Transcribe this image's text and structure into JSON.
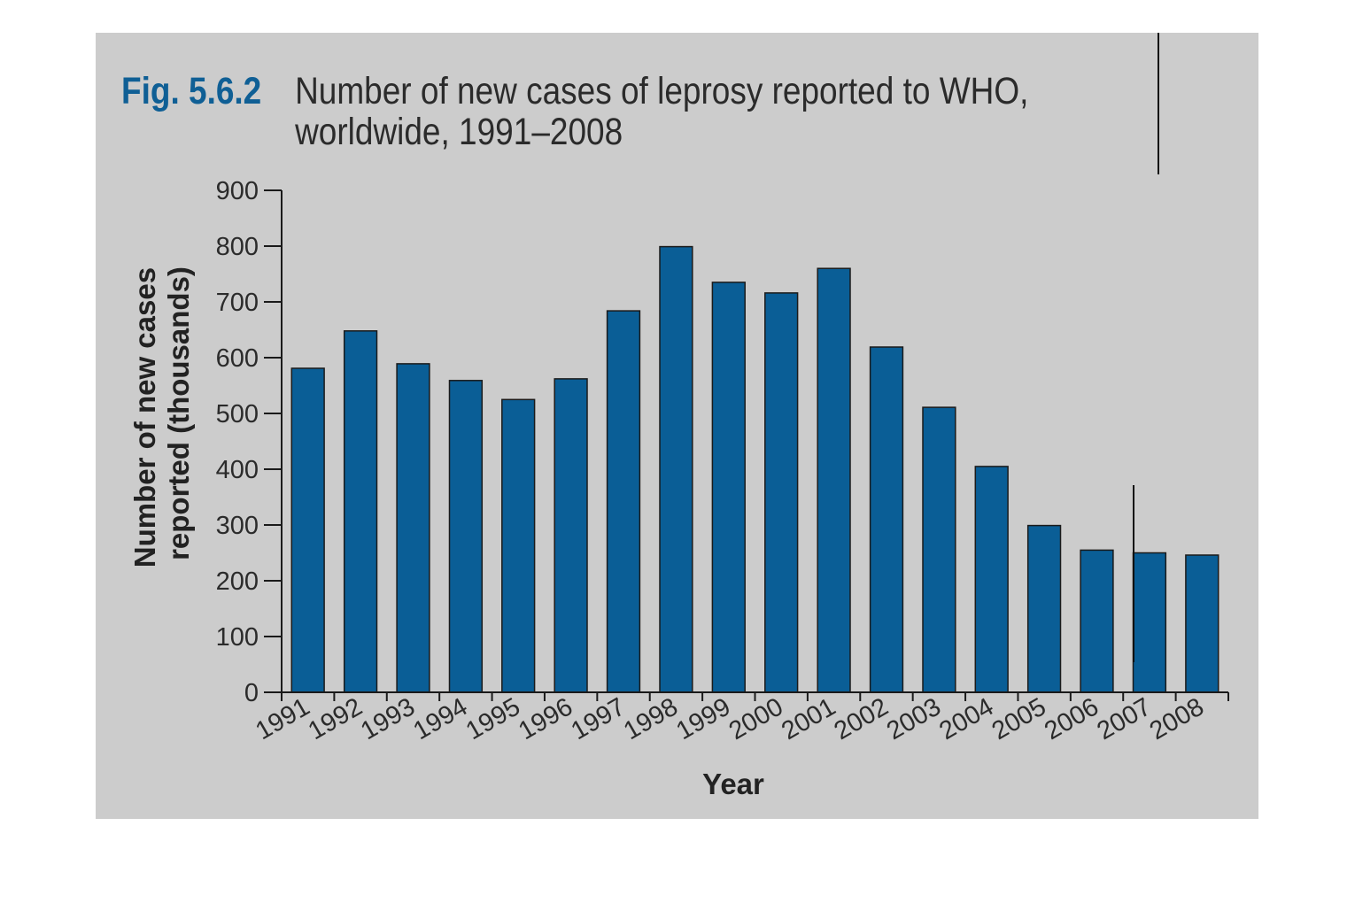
{
  "figure": {
    "label": "Fig. 5.6.2",
    "caption": "Number of new cases of leprosy reported to WHO, worldwide, 1991–2008"
  },
  "colors": {
    "panel_background": "#cccccc",
    "bar_fill": "#0a5e96",
    "bar_stroke": "#1a1a1a",
    "figure_label": "#0f5f95"
  },
  "chart_data": {
    "type": "bar",
    "title": "Number of new cases of leprosy reported to WHO, worldwide, 1991–2008",
    "xlabel": "Year",
    "ylabel": "Number of new cases reported (thousands)",
    "ylabel_lines": [
      "Number of new cases",
      "reported (thousands)"
    ],
    "categories": [
      "1991",
      "1992",
      "1993",
      "1994",
      "1995",
      "1996",
      "1997",
      "1998",
      "1999",
      "2000",
      "2001",
      "2002",
      "2003",
      "2004",
      "2005",
      "2006",
      "2007",
      "2008"
    ],
    "values": [
      581,
      648,
      589,
      559,
      525,
      562,
      684,
      799,
      735,
      716,
      760,
      619,
      511,
      405,
      299,
      255,
      250,
      246
    ],
    "ylim": [
      0,
      900
    ],
    "yticks": [
      0,
      100,
      200,
      300,
      400,
      500,
      600,
      700,
      800,
      900
    ],
    "grid": false,
    "legend": "none"
  }
}
